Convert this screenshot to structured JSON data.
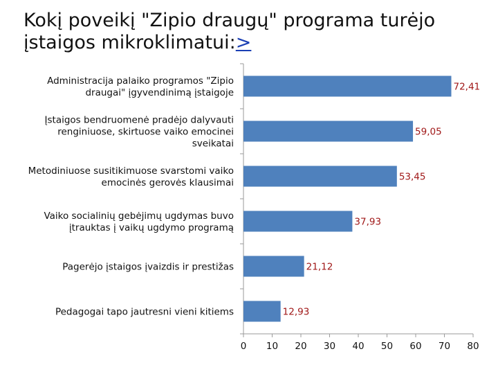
{
  "slide": {
    "title_main": "Kokį poveikį \"Zipio draugų\" programa  turėjo įstaigos mikroklimatui:",
    "title_link": ">"
  },
  "chart_data": {
    "type": "bar",
    "orientation": "horizontal",
    "title": "Kokį poveikį \"Zipio draugų\" programa  turėjo įstaigos mikroklimatui:",
    "categories": [
      [
        "Administracija palaiko programos \"Zipio",
        "draugai\" įgyvendinimą įstaigoje"
      ],
      [
        "Įstaigos bendruomenė pradėjo dalyvauti",
        "renginiuose, skirtuose vaiko emocinei",
        "sveikatai"
      ],
      [
        "Metodiniuose susitikimuose svarstomi vaiko",
        "emocinės gerovės klausimai"
      ],
      [
        "Vaiko socialinių gebėjimų ugdymas buvo",
        "įtrauktas į vaikų ugdymo  programą"
      ],
      [
        "Pagerėjo įstaigos įvaizdis ir prestižas"
      ],
      [
        "Pedagogai tapo jautresni vieni kitiems"
      ]
    ],
    "values": [
      72.41,
      59.05,
      53.45,
      37.93,
      21.12,
      12.93
    ],
    "value_labels": [
      "72,41",
      "59,05",
      "53,45",
      "37,93",
      "21,12",
      "12,93"
    ],
    "xlim": [
      0,
      80
    ],
    "xticks": [
      0,
      10,
      20,
      30,
      40,
      50,
      60,
      70,
      80
    ],
    "xtick_labels": [
      "0",
      "10",
      "20",
      "30",
      "40",
      "50",
      "60",
      "70",
      "80"
    ],
    "bar_color": "#4f81bd",
    "value_label_color": "#a01818",
    "grid": false
  }
}
